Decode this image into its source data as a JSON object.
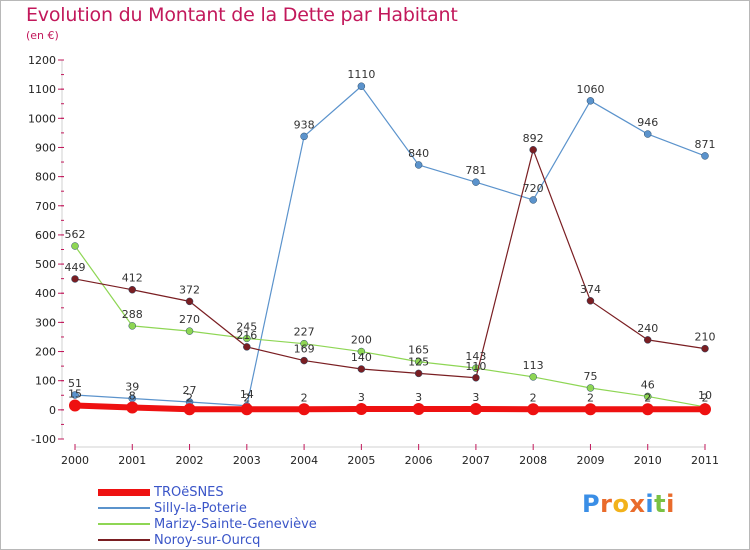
{
  "title": "Evolution du Montant de la Dette par Habitant",
  "unit_label": "(en €)",
  "logo": {
    "text": "Proxiti",
    "letters": [
      "P",
      "r",
      "o",
      "x",
      "i",
      "t",
      "i"
    ],
    "letter_colors": [
      "#3a8ee6",
      "#e96b2b",
      "#f2b21b",
      "#e96b2b",
      "#3a8ee6",
      "#7ac143",
      "#e96b2b"
    ]
  },
  "chart_data": {
    "type": "line",
    "categories": [
      "2000",
      "2001",
      "2002",
      "2003",
      "2004",
      "2005",
      "2006",
      "2007",
      "2008",
      "2009",
      "2010",
      "2011"
    ],
    "y_ticks": [
      "-100",
      "0",
      "100",
      "200",
      "300",
      "400",
      "500",
      "600",
      "700",
      "800",
      "900",
      "1000",
      "1100",
      "1200"
    ],
    "ylim": [
      -100,
      1200
    ],
    "grid": false,
    "legend_position": "bottom-left",
    "series": [
      {
        "name": "TROëSNES",
        "color": "#ee1111",
        "thick": true,
        "values": [
          15,
          8,
          2,
          2,
          2,
          3,
          3,
          3,
          2,
          2,
          2,
          2
        ],
        "labels": [
          "15",
          "8",
          "2",
          "2",
          "2",
          "3",
          "3",
          "3",
          "2",
          "2",
          "2",
          "2"
        ]
      },
      {
        "name": "Silly-la-Poterie",
        "color": "#5b93cc",
        "thick": false,
        "values": [
          51,
          39,
          27,
          14,
          938,
          1110,
          840,
          781,
          720,
          1060,
          946,
          871
        ],
        "labels": [
          "51",
          "39",
          "27",
          "14",
          "938",
          "1110",
          "840",
          "781",
          "720",
          "1060",
          "946",
          "871"
        ]
      },
      {
        "name": "Marizy-Sainte-Geneviève",
        "color": "#8ed654",
        "thick": false,
        "values": [
          562,
          288,
          270,
          245,
          227,
          200,
          165,
          143,
          113,
          75,
          46,
          10
        ],
        "labels": [
          "562",
          "288",
          "270",
          "245",
          "227",
          "200",
          "165",
          "143",
          "113",
          "75",
          "46",
          "10"
        ]
      },
      {
        "name": "Noroy-sur-Ourcq",
        "color": "#7a1e22",
        "thick": false,
        "values": [
          449,
          412,
          372,
          216,
          169,
          140,
          125,
          110,
          892,
          374,
          240,
          210
        ],
        "labels": [
          "449",
          "412",
          "372",
          "216",
          "169",
          "140",
          "125",
          "110",
          "892",
          "374",
          "240",
          "210"
        ]
      }
    ]
  }
}
